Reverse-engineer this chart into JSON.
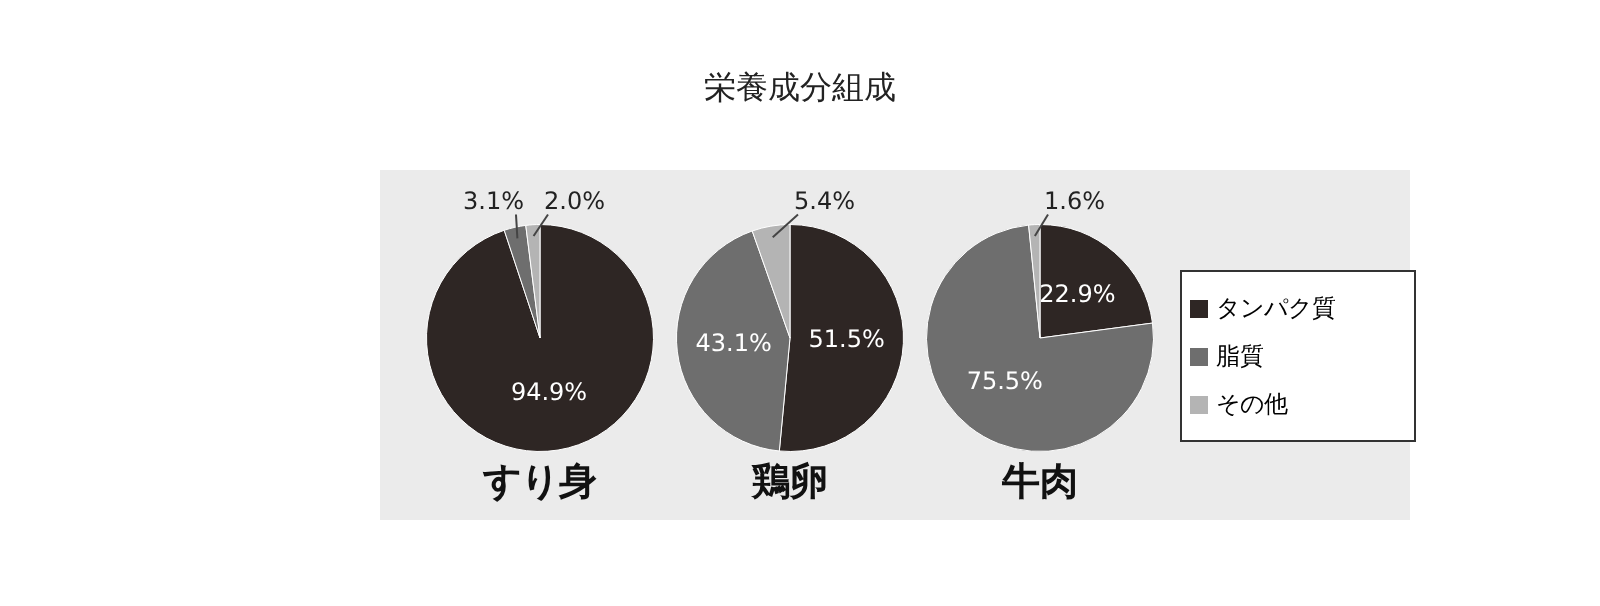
{
  "chart_data": {
    "type": "pie",
    "title": "栄養成分組成",
    "categories": [
      "タンパク質",
      "脂質",
      "その他"
    ],
    "colors": [
      "#2e2624",
      "#6e6e6e",
      "#b4b4b4"
    ],
    "legend": "right",
    "series": [
      {
        "name": "すり身",
        "values": [
          94.9,
          3.1,
          2.0
        ],
        "value_labels": [
          "94.9%",
          "3.1%",
          "2.0%"
        ]
      },
      {
        "name": "鶏卵",
        "values": [
          51.5,
          43.1,
          5.4
        ],
        "value_labels": [
          "51.5%",
          "43.1%",
          "5.4%"
        ]
      },
      {
        "name": "牛肉",
        "values": [
          22.9,
          75.5,
          1.6
        ],
        "value_labels": [
          "22.9%",
          "75.5%",
          "1.6%"
        ]
      }
    ]
  }
}
